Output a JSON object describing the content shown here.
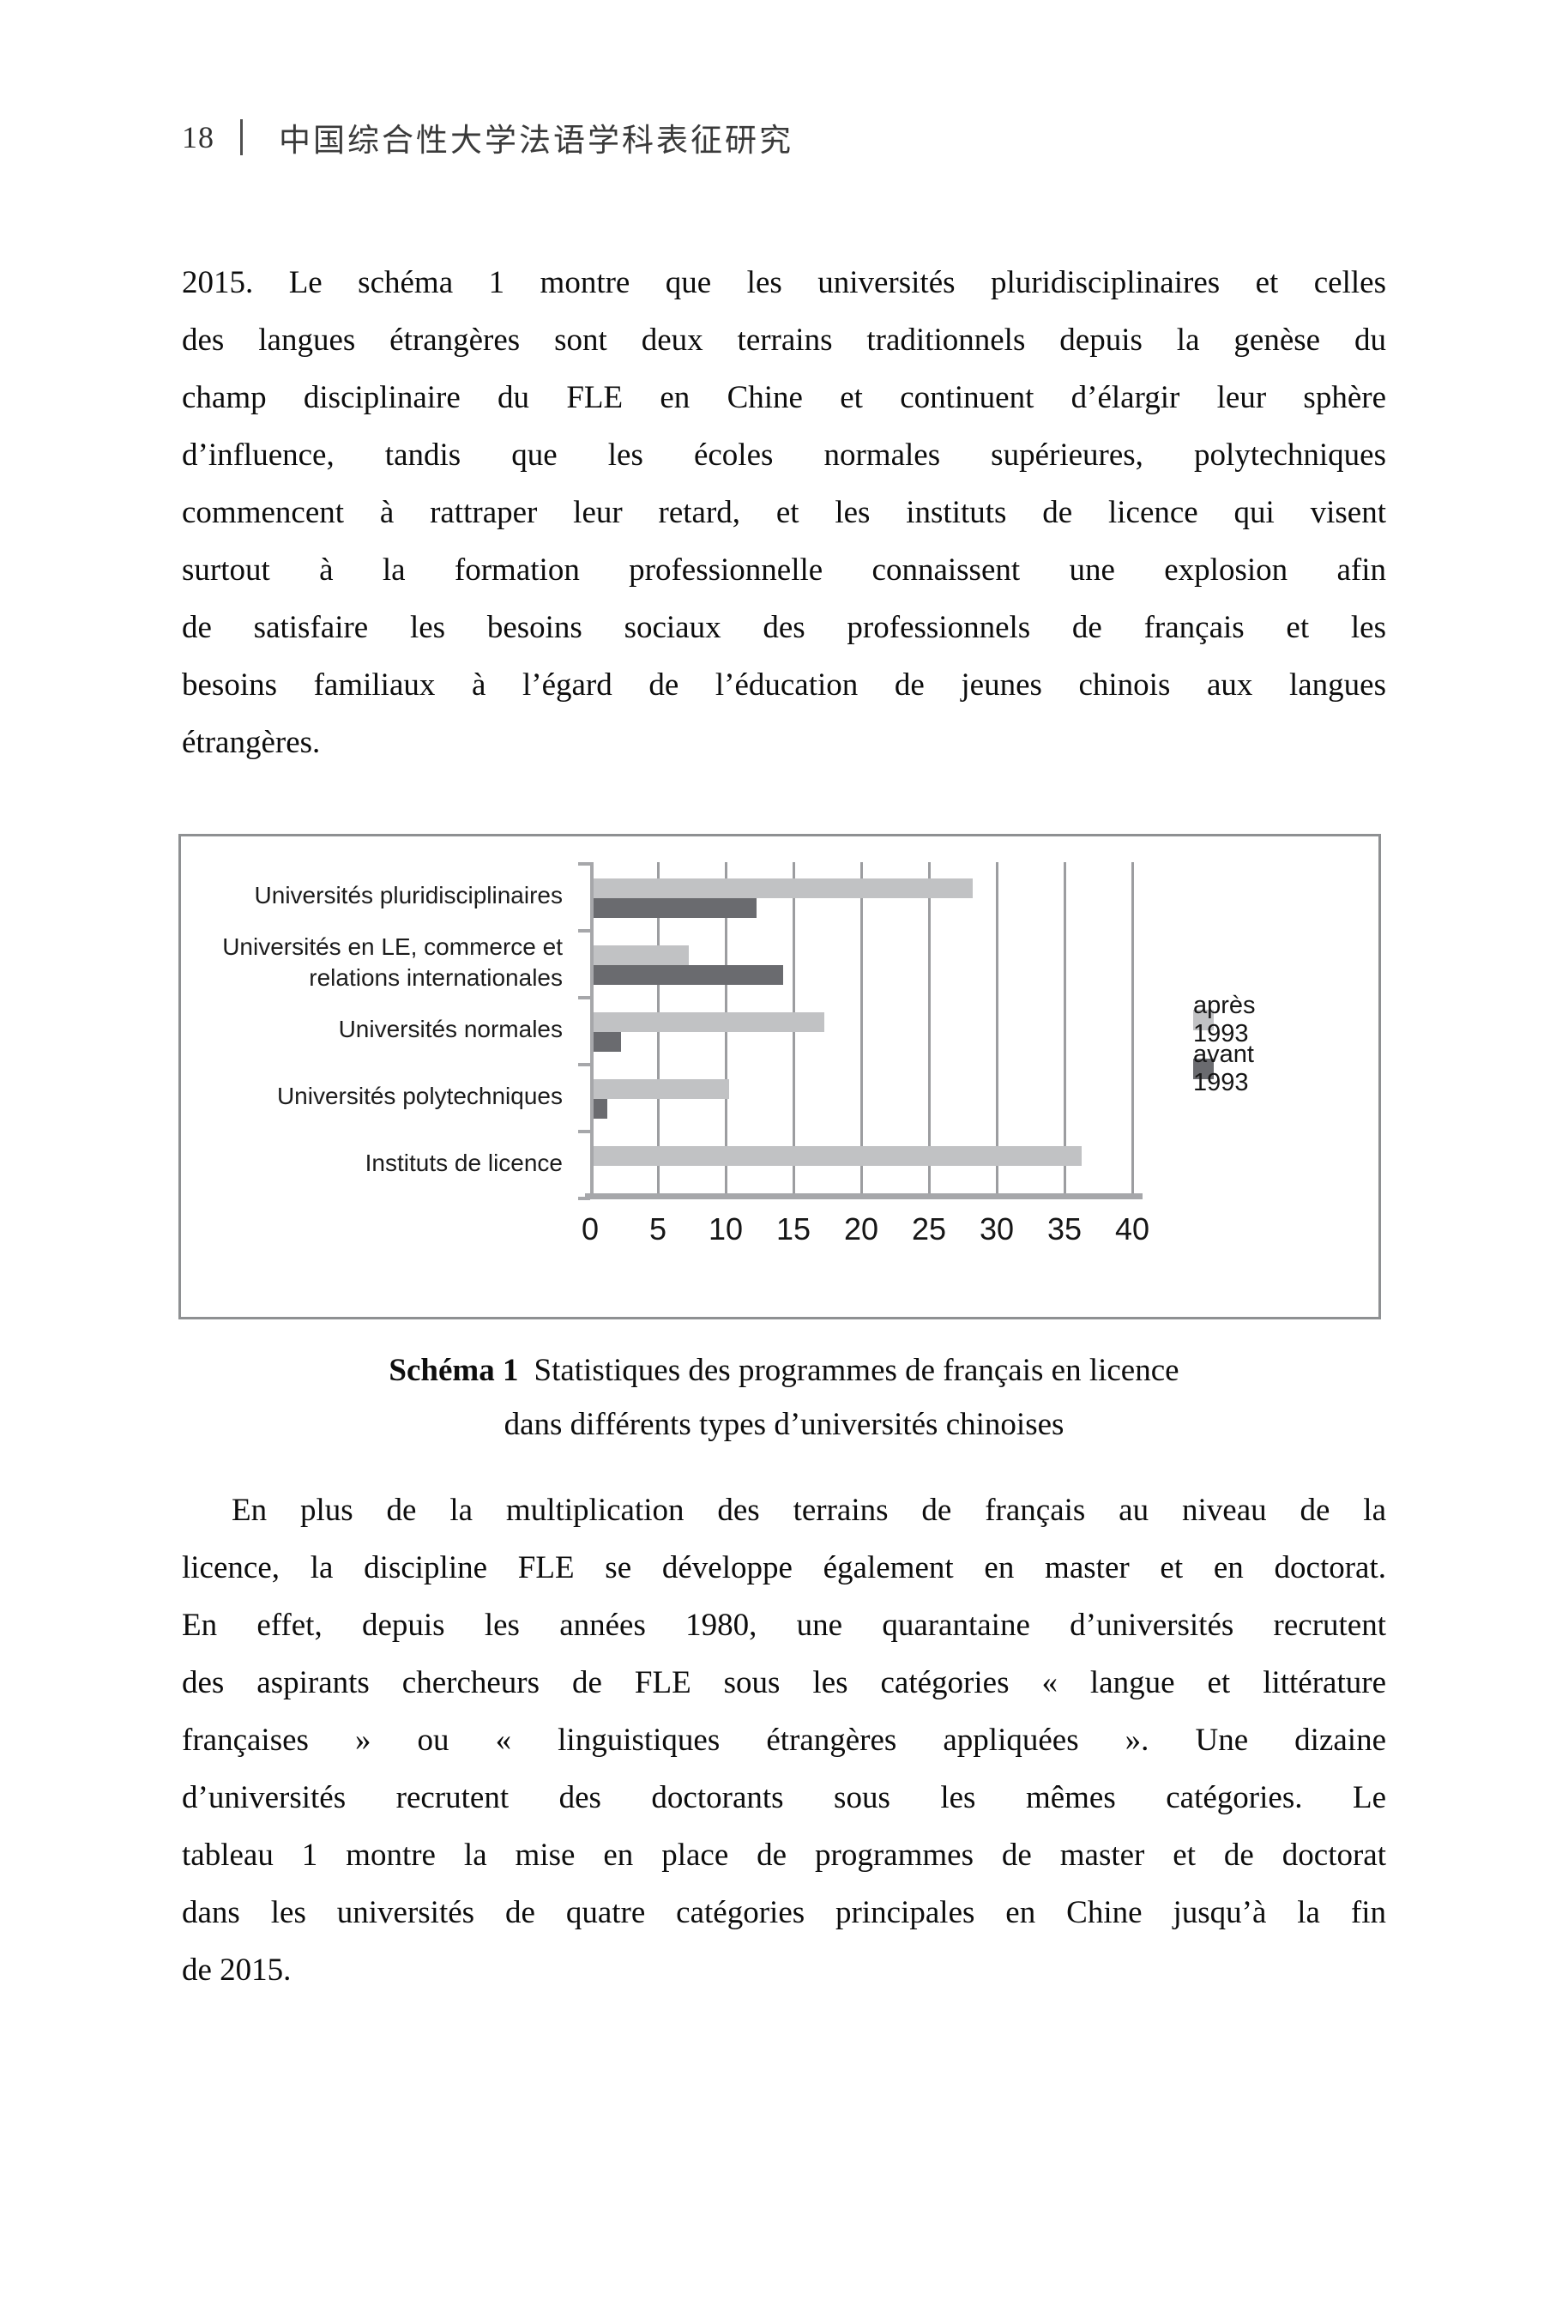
{
  "header": {
    "page_number": "18",
    "book_title": "中国综合性大学法语学科表征研究"
  },
  "paragraphs": [
    {
      "first_line_indent": false,
      "lines": [
        "2015. Le schéma 1 montre que les universités pluridisciplinaires et celles",
        "des langues étrangères sont deux terrains traditionnels depuis la genèse du",
        "champ disciplinaire du FLE en Chine et continuent d’élargir leur sphère",
        "d’influence, tandis que les écoles normales supérieures, polytechniques",
        "commencent à rattraper leur retard, et les instituts de licence qui visent",
        "surtout à la formation professionnelle connaissent une explosion afin",
        "de satisfaire les besoins sociaux des professionnels de français et les",
        "besoins familiaux à l’égard de l’éducation de jeunes chinois aux langues",
        "étrangères."
      ]
    },
    {
      "first_line_indent": true,
      "lines": [
        "En plus de la multiplication des terrains de français au niveau de la",
        "licence, la discipline FLE se développe également en master et en doctorat.",
        "En effet, depuis les années 1980, une quarantaine d’universités recrutent",
        "des aspirants chercheurs de FLE sous les catégories « langue et littérature",
        "françaises » ou « linguistiques étrangères appliquées ». Une dizaine",
        "d’universités recrutent des doctorants sous les mêmes catégories. Le",
        "tableau 1 montre la mise en place de programmes de master et de doctorat",
        "dans les universités de quatre catégories principales en Chine jusqu’à la fin",
        "de 2015."
      ]
    }
  ],
  "caption": {
    "label": "Schéma 1",
    "line1": "Statistiques des programmes de français en licence",
    "line2": "dans différents types d’universités chinoises"
  },
  "chart_data": {
    "type": "bar",
    "orientation": "horizontal",
    "title": "Schéma 1 Statistiques des programmes de français en licence dans différents types d’universités chinoises",
    "categories": [
      "Universités pluridisciplinaires",
      "Universités en LE, commerce et\nrelations internationales",
      "Universités normales",
      "Universités polytechniques",
      "Instituts de licence"
    ],
    "series": [
      {
        "name": "après 1993",
        "color": "#c1c2c4",
        "values": [
          28,
          7,
          17,
          10,
          36
        ]
      },
      {
        "name": "avant 1993",
        "color": "#6a6b6f",
        "values": [
          12,
          14,
          2,
          1,
          0
        ]
      }
    ],
    "xlim": [
      0,
      40
    ],
    "xticks": [
      0,
      5,
      10,
      15,
      20,
      25,
      30,
      35,
      40
    ],
    "grid": "vertical-only",
    "legend_position": "right-middle",
    "grid_color": "#9c9da0",
    "axis_color": "#a6a7aa",
    "border_color": "#8e9092"
  }
}
